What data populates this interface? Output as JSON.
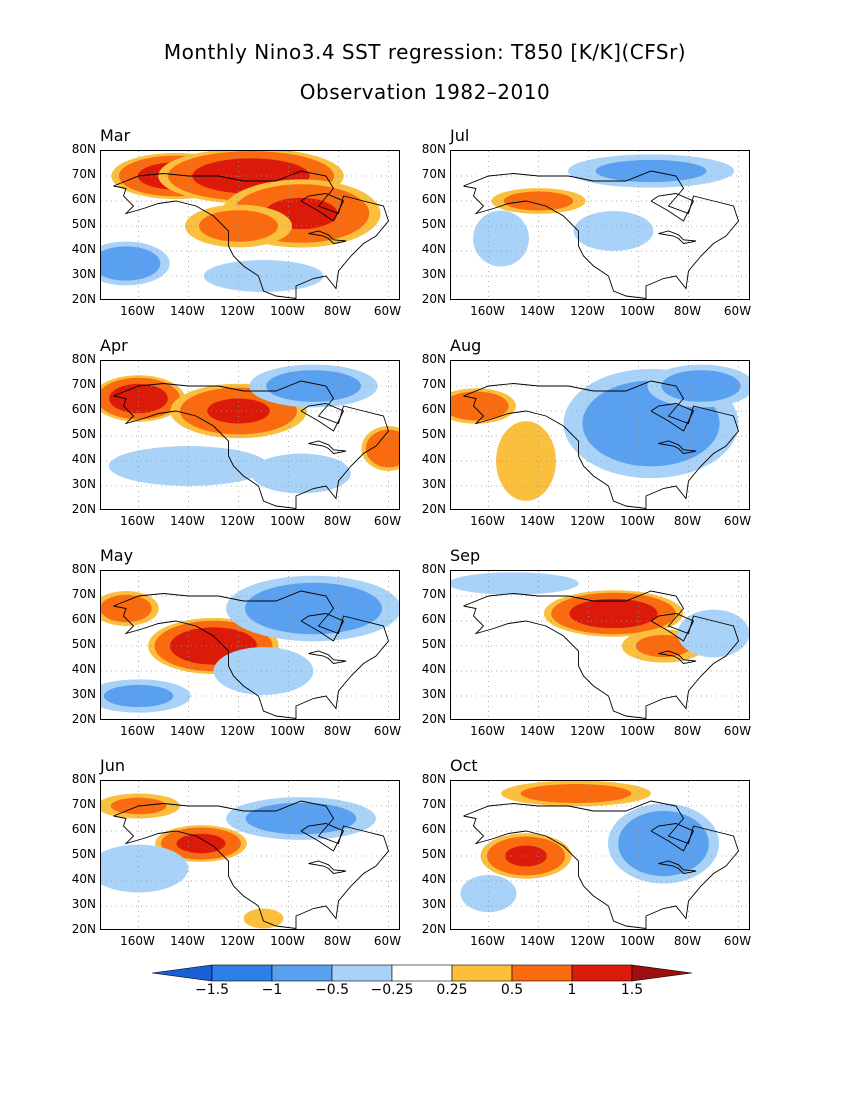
{
  "title": "Monthly Nino3.4 SST regression: T850 [K/K](CFSr)",
  "subtitle": "Observation 1982–2010",
  "panels": [
    {
      "month": "Mar",
      "col": 0,
      "row": 0
    },
    {
      "month": "Jul",
      "col": 1,
      "row": 0
    },
    {
      "month": "Apr",
      "col": 0,
      "row": 1
    },
    {
      "month": "Aug",
      "col": 1,
      "row": 1
    },
    {
      "month": "May",
      "col": 0,
      "row": 2
    },
    {
      "month": "Sep",
      "col": 1,
      "row": 2
    },
    {
      "month": "Jun",
      "col": 0,
      "row": 3
    },
    {
      "month": "Oct",
      "col": 1,
      "row": 3
    }
  ],
  "y_ticks": [
    "80N",
    "70N",
    "60N",
    "50N",
    "40N",
    "30N",
    "20N"
  ],
  "x_ticks": [
    "160W",
    "140W",
    "120W",
    "100W",
    "80W",
    "60W"
  ],
  "colorbar": {
    "labels": [
      "−1.5",
      "−1",
      "−0.5",
      "−0.25",
      "0.25",
      "0.5",
      "1",
      "1.5"
    ],
    "colors": [
      "#1a5fd6",
      "#2e7fe8",
      "#5aa0f0",
      "#a8d2f8",
      "#ffffff",
      "#fbbf3e",
      "#f96b0e",
      "#dc1a0a",
      "#a00f0f"
    ]
  },
  "chart_data": {
    "type": "heatmap",
    "title": "Monthly Nino3.4 SST regression: T850 [K/K](CFSr)",
    "subtitle": "Observation 1982–2010",
    "panels": [
      "Mar",
      "Jul",
      "Apr",
      "Aug",
      "May",
      "Sep",
      "Jun",
      "Oct"
    ],
    "x_range": [
      -175,
      -55
    ],
    "y_range": [
      20,
      80
    ],
    "levels": [
      -1.5,
      -1,
      -0.5,
      -0.25,
      0.25,
      0.5,
      1,
      1.5
    ],
    "grid": "dotted",
    "colorbar_position": "bottom",
    "anomalies": {
      "Mar": [
        [
          -145,
          70,
          1.2,
          28,
          10
        ],
        [
          -115,
          70,
          1.3,
          40,
          12
        ],
        [
          -95,
          55,
          1.0,
          35,
          15
        ],
        [
          -120,
          50,
          0.6,
          25,
          10
        ],
        [
          -165,
          35,
          -0.7,
          20,
          10
        ],
        [
          -110,
          30,
          -0.4,
          30,
          8
        ]
      ],
      "Jul": [
        [
          -140,
          60,
          0.6,
          22,
          6
        ],
        [
          -95,
          72,
          -0.5,
          40,
          8
        ],
        [
          -110,
          48,
          -0.4,
          20,
          10
        ],
        [
          -155,
          45,
          -0.3,
          15,
          15
        ]
      ],
      "Apr": [
        [
          -160,
          65,
          1.3,
          20,
          10
        ],
        [
          -120,
          60,
          1.0,
          30,
          12
        ],
        [
          -60,
          45,
          0.9,
          12,
          10
        ],
        [
          -90,
          70,
          -0.6,
          30,
          10
        ],
        [
          -140,
          38,
          -0.4,
          40,
          10
        ],
        [
          -95,
          35,
          -0.4,
          25,
          10
        ]
      ],
      "Aug": [
        [
          -165,
          62,
          0.8,
          18,
          8
        ],
        [
          -145,
          40,
          0.4,
          15,
          20
        ],
        [
          -95,
          55,
          -0.7,
          40,
          25
        ],
        [
          -75,
          70,
          -0.6,
          25,
          10
        ]
      ],
      "May": [
        [
          -130,
          50,
          1.4,
          28,
          12
        ],
        [
          -165,
          65,
          0.7,
          15,
          8
        ],
        [
          -90,
          65,
          -0.7,
          40,
          15
        ],
        [
          -160,
          30,
          -0.5,
          25,
          8
        ],
        [
          -110,
          40,
          -0.4,
          25,
          12
        ]
      ],
      "Sep": [
        [
          -110,
          63,
          1.3,
          30,
          10
        ],
        [
          -90,
          50,
          0.5,
          20,
          8
        ],
        [
          -150,
          75,
          -0.3,
          35,
          6
        ],
        [
          -70,
          55,
          -0.4,
          18,
          12
        ]
      ],
      "Jun": [
        [
          -135,
          55,
          1.1,
          20,
          8
        ],
        [
          -160,
          70,
          0.5,
          20,
          6
        ],
        [
          -95,
          65,
          -0.6,
          35,
          10
        ],
        [
          -160,
          45,
          -0.4,
          25,
          12
        ],
        [
          -110,
          25,
          0.4,
          10,
          5
        ]
      ],
      "Oct": [
        [
          -145,
          50,
          1.0,
          20,
          10
        ],
        [
          -125,
          75,
          0.6,
          35,
          6
        ],
        [
          -90,
          55,
          -0.8,
          25,
          18
        ],
        [
          -160,
          35,
          -0.3,
          15,
          10
        ]
      ]
    }
  }
}
